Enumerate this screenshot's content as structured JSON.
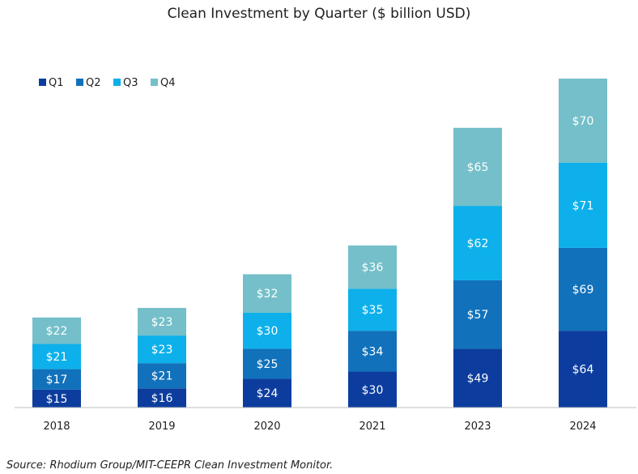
{
  "chart_data": {
    "type": "bar",
    "stacked": true,
    "title": "Clean Investment by Quarter ($ billion USD)",
    "categories": [
      "2018",
      "2019",
      "2020",
      "2021",
      "2023",
      "2024"
    ],
    "series": [
      {
        "name": "Q1",
        "values": [
          15,
          16,
          24,
          30,
          49,
          64
        ],
        "labels": [
          "$15",
          "$16",
          "$24",
          "$30",
          "$49",
          "$64"
        ],
        "color": "#0c3d9e"
      },
      {
        "name": "Q2",
        "values": [
          17,
          21,
          25,
          34,
          57,
          69
        ],
        "labels": [
          "$17",
          "$21",
          "$25",
          "$34",
          "$57",
          "$69"
        ],
        "color": "#1171bb"
      },
      {
        "name": "Q3",
        "values": [
          21,
          23,
          30,
          35,
          62,
          71
        ],
        "labels": [
          "$21",
          "$23",
          "$30",
          "$35",
          "$62",
          "$71"
        ],
        "color": "#0db0ea"
      },
      {
        "name": "Q4",
        "values": [
          22,
          23,
          32,
          36,
          65,
          70
        ],
        "labels": [
          "$22",
          "$23",
          "$32",
          "$36",
          "$65",
          "$70"
        ],
        "color": "#74bfc9"
      }
    ],
    "xlabel": "",
    "ylabel": "",
    "ylim": [
      0,
      274
    ],
    "grid": false,
    "legend_position": "top-left",
    "source": "Source: Rhodium Group/MIT-CEEPR Clean Investment Monitor."
  }
}
